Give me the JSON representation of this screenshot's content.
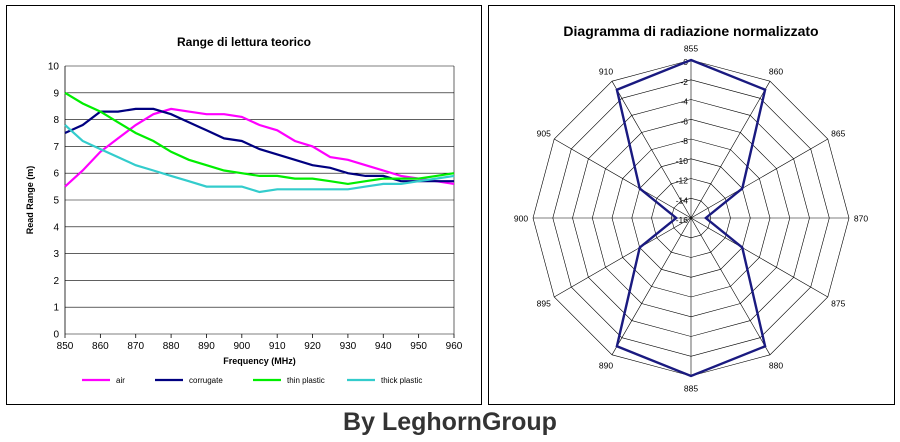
{
  "footer": "By LeghornGroup",
  "chart_data": [
    {
      "type": "line",
      "title": "Range di lettura teorico",
      "xlabel": "Frequency  (MHz)",
      "ylabel": "Read Range (m)",
      "xlim": [
        850,
        960
      ],
      "ylim": [
        0,
        10
      ],
      "xticks": [
        850,
        860,
        870,
        880,
        890,
        900,
        910,
        920,
        930,
        940,
        950,
        960
      ],
      "yticks": [
        0,
        1,
        2,
        3,
        4,
        5,
        6,
        7,
        8,
        9,
        10
      ],
      "grid": "horizontal",
      "legend": "bottom",
      "x": [
        850,
        855,
        860,
        865,
        870,
        875,
        880,
        885,
        890,
        895,
        900,
        905,
        910,
        915,
        920,
        925,
        930,
        935,
        940,
        945,
        950,
        955,
        960
      ],
      "series": [
        {
          "name": "air",
          "color": "#ff00ff",
          "values": [
            5.5,
            6.1,
            6.8,
            7.3,
            7.8,
            8.2,
            8.4,
            8.3,
            8.2,
            8.2,
            8.1,
            7.8,
            7.6,
            7.2,
            7.0,
            6.6,
            6.5,
            6.3,
            6.1,
            5.9,
            5.8,
            5.7,
            5.6
          ]
        },
        {
          "name": "corrugate",
          "color": "#000080",
          "values": [
            7.5,
            7.8,
            8.3,
            8.3,
            8.4,
            8.4,
            8.2,
            7.9,
            7.6,
            7.3,
            7.2,
            6.9,
            6.7,
            6.5,
            6.3,
            6.2,
            6.0,
            5.9,
            5.9,
            5.7,
            5.7,
            5.7,
            5.7
          ]
        },
        {
          "name": "thin plastic",
          "color": "#00ee00",
          "values": [
            9.0,
            8.6,
            8.3,
            7.9,
            7.5,
            7.2,
            6.8,
            6.5,
            6.3,
            6.1,
            6.0,
            5.9,
            5.9,
            5.8,
            5.8,
            5.7,
            5.6,
            5.7,
            5.8,
            5.8,
            5.8,
            5.9,
            6.0
          ]
        },
        {
          "name": "thick plastic",
          "color": "#33cccc",
          "values": [
            7.8,
            7.2,
            6.9,
            6.6,
            6.3,
            6.1,
            5.9,
            5.7,
            5.5,
            5.5,
            5.5,
            5.3,
            5.4,
            5.4,
            5.4,
            5.4,
            5.4,
            5.5,
            5.6,
            5.6,
            5.7,
            5.8,
            5.9
          ]
        }
      ]
    },
    {
      "type": "radar",
      "title": "Diagramma di radiazione normalizzato",
      "categories": [
        "855",
        "860",
        "865",
        "870",
        "875",
        "880",
        "885",
        "890",
        "895",
        "900",
        "905",
        "910"
      ],
      "rticks": [
        0,
        -2,
        -4,
        -6,
        -8,
        -10,
        -12,
        -14,
        -16
      ],
      "rlim": [
        -16,
        0
      ],
      "series": [
        {
          "name": "",
          "color": "#1a1a80",
          "values": [
            0,
            -1,
            -10,
            -14.5,
            -10,
            -1,
            0,
            -1,
            -10,
            -14.5,
            -10,
            -1
          ]
        }
      ]
    }
  ]
}
